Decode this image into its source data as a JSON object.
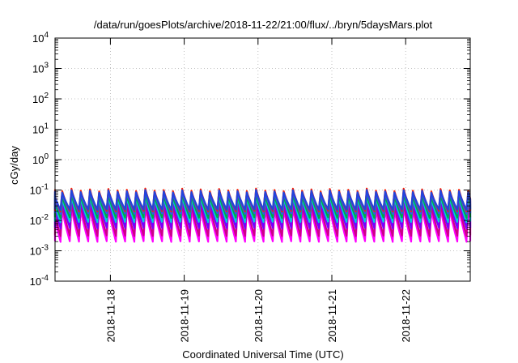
{
  "chart_data": {
    "type": "line",
    "title": "/data/run/goesPlots/archive/2018-11-22/21:00/flux/../bryn/5daysMars.plot",
    "xlabel": "Coordinated Universal Time (UTC)",
    "ylabel": "cGy/day",
    "y_scale": "log",
    "ylim": [
      0.0001,
      10000
    ],
    "y_ticks": [
      {
        "value": 0.0001,
        "base": "10",
        "exp": "-4"
      },
      {
        "value": 0.001,
        "base": "10",
        "exp": "-3"
      },
      {
        "value": 0.01,
        "base": "10",
        "exp": "-2"
      },
      {
        "value": 0.1,
        "base": "10",
        "exp": "-1"
      },
      {
        "value": 1,
        "base": "10",
        "exp": "0"
      },
      {
        "value": 10,
        "base": "10",
        "exp": "1"
      },
      {
        "value": 100,
        "base": "10",
        "exp": "2"
      },
      {
        "value": 1000,
        "base": "10",
        "exp": "3"
      },
      {
        "value": 10000,
        "base": "10",
        "exp": "4"
      }
    ],
    "xlim": [
      "2018-11-17 06:00",
      "2018-11-22 21:00"
    ],
    "x_ticks": [
      "2018-11-18",
      "2018-11-19",
      "2018-11-20",
      "2018-11-21",
      "2018-11-22"
    ],
    "grid": true,
    "legend": "none",
    "periodic_pattern": {
      "period_hours": 3,
      "description": "sawtooth: sharp rise then decay over each 3-hour interval"
    },
    "series": [
      {
        "color": "#ff00ff",
        "peak": 0.025,
        "trough": 0.0018
      },
      {
        "color": "#cc0088",
        "peak": 0.035,
        "trough": 0.0028
      },
      {
        "color": "#7700ff",
        "peak": 0.05,
        "trough": 0.005
      },
      {
        "color": "#00ccdd",
        "peak": 0.06,
        "trough": 0.008
      },
      {
        "color": "#00aa44",
        "peak": 0.07,
        "trough": 0.011
      },
      {
        "color": "#3355ee",
        "peak": 0.085,
        "trough": 0.015
      },
      {
        "color": "#ff2200",
        "peak": 0.1,
        "trough": 0.018
      },
      {
        "color": "#2244dd",
        "peak": 0.09,
        "trough": 0.02
      }
    ]
  }
}
